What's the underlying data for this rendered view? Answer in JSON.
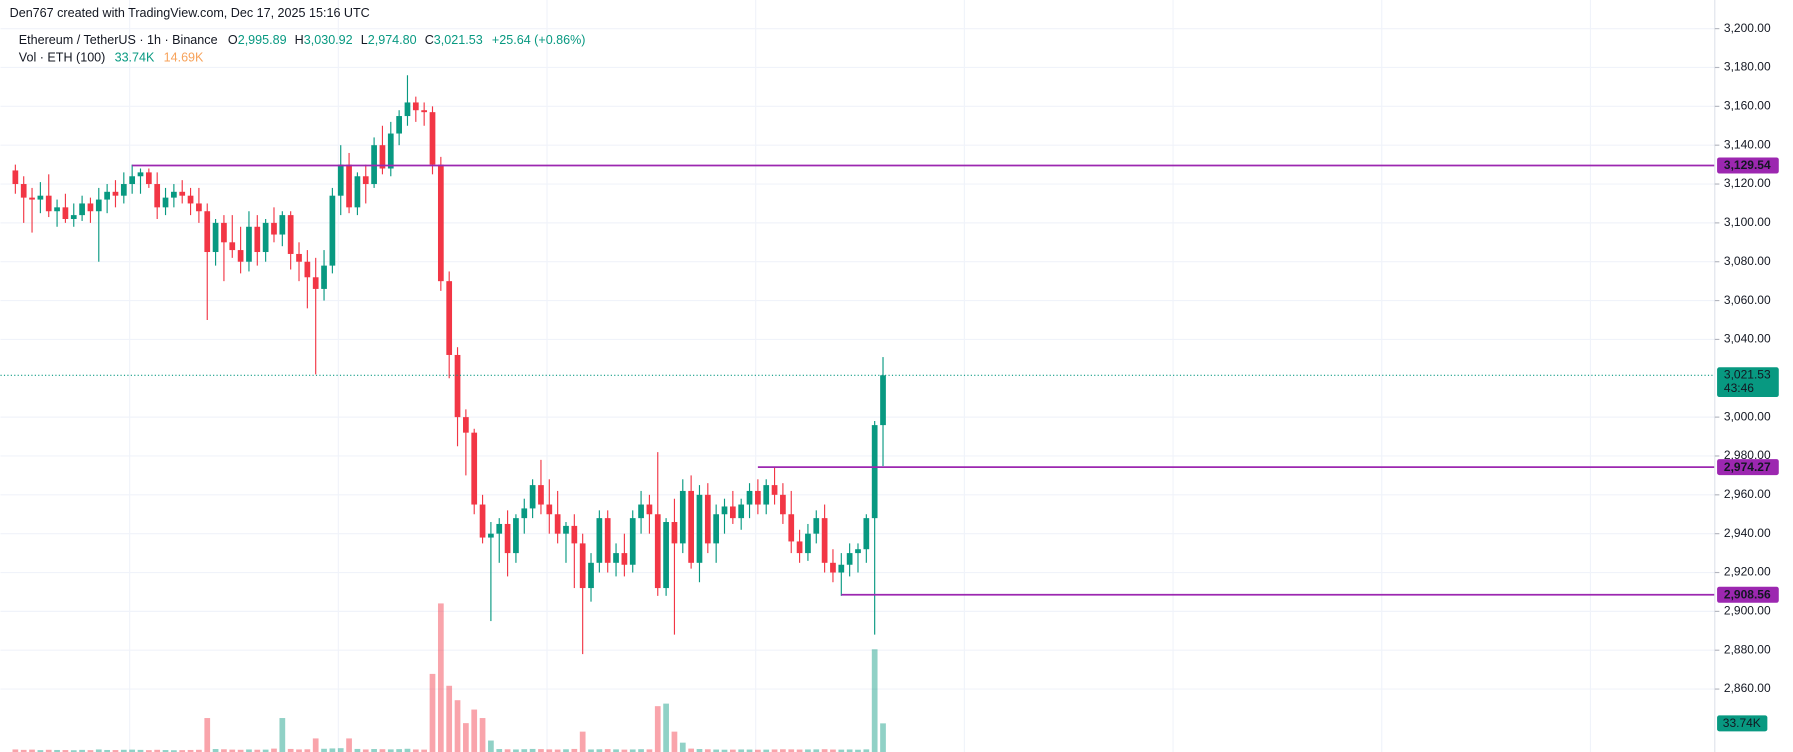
{
  "header": {
    "credit": "Den767 created with TradingView.com, Dec 17, 2025 15:16 UTC"
  },
  "chart_data": {
    "type": "candlestick",
    "title": "Ethereum / TetherUS · 1h · Binance",
    "ohlc_legend": [
      {
        "key": "O",
        "value": 2995.89,
        "label": "2,995.89"
      },
      {
        "key": "H",
        "value": 3030.92,
        "label": "3,030.92"
      },
      {
        "key": "L",
        "value": 2974.8,
        "label": "2,974.80"
      },
      {
        "key": "C",
        "value": 3021.53,
        "label": "3,021.53"
      }
    ],
    "change_label": "+25.64 (+0.86%)",
    "volume_legend": {
      "title": "Vol · ETH (100)",
      "value": {
        "value": 33740,
        "label": "33.74K"
      },
      "ma": {
        "value": 14690,
        "label": "14.69K"
      }
    },
    "up_color": "#089981",
    "down_color": "#f23645",
    "level_color": "#9c27b0",
    "ylim": [
      2827.6,
      3201.8
    ],
    "yticks": [
      {
        "value": 2860,
        "label": "2,860.00"
      },
      {
        "value": 2880,
        "label": "2,880.00"
      },
      {
        "value": 2900,
        "label": "2,900.00"
      },
      {
        "value": 2920,
        "label": "2,920.00"
      },
      {
        "value": 2940,
        "label": "2,940.00"
      },
      {
        "value": 2960,
        "label": "2,960.00"
      },
      {
        "value": 2980,
        "label": "2,980.00"
      },
      {
        "value": 3000,
        "label": "3,000.00"
      },
      {
        "value": 3040,
        "label": "3,040.00"
      },
      {
        "value": 3060,
        "label": "3,060.00"
      },
      {
        "value": 3080,
        "label": "3,080.00"
      },
      {
        "value": 3100,
        "label": "3,100.00"
      },
      {
        "value": 3120,
        "label": "3,120.00"
      },
      {
        "value": 3140,
        "label": "3,140.00"
      },
      {
        "value": 3160,
        "label": "3,160.00"
      },
      {
        "value": 3180,
        "label": "3,180.00"
      },
      {
        "value": 3200,
        "label": "3,200.00"
      }
    ],
    "levels": [
      {
        "value": 3129.54,
        "label": "3,129.54"
      },
      {
        "value": 2974.27,
        "label": "2,974.27"
      },
      {
        "value": 2908.56,
        "label": "2,908.56"
      }
    ],
    "current_price": {
      "value": 3021.53,
      "label": "3,021.53",
      "countdown": "43:46"
    },
    "ohlc": [
      [
        3127,
        3130,
        3115,
        3120
      ],
      [
        3120,
        3124,
        3100,
        3113
      ],
      [
        3113,
        3118,
        3095,
        3112
      ],
      [
        3112,
        3121,
        3105,
        3114
      ],
      [
        3114,
        3125,
        3103,
        3106
      ],
      [
        3106,
        3112,
        3098,
        3108
      ],
      [
        3108,
        3115,
        3100,
        3102
      ],
      [
        3102,
        3110,
        3098,
        3104
      ],
      [
        3104,
        3114,
        3101,
        3110
      ],
      [
        3110,
        3113,
        3100,
        3106
      ],
      [
        3106,
        3118,
        3080,
        3112
      ],
      [
        3112,
        3120,
        3105,
        3116
      ],
      [
        3116,
        3122,
        3108,
        3114
      ],
      [
        3114,
        3126,
        3110,
        3120
      ],
      [
        3120,
        3130,
        3115,
        3124
      ],
      [
        3124,
        3128,
        3115,
        3126
      ],
      [
        3126,
        3128,
        3118,
        3120
      ],
      [
        3120,
        3126,
        3102,
        3108
      ],
      [
        3108,
        3118,
        3104,
        3113
      ],
      [
        3113,
        3120,
        3108,
        3116
      ],
      [
        3116,
        3122,
        3110,
        3114
      ],
      [
        3114,
        3118,
        3104,
        3110
      ],
      [
        3110,
        3118,
        3100,
        3106
      ],
      [
        3106,
        3110,
        3050,
        3085
      ],
      [
        3085,
        3102,
        3078,
        3100
      ],
      [
        3100,
        3104,
        3070,
        3090
      ],
      [
        3090,
        3104,
        3082,
        3086
      ],
      [
        3086,
        3098,
        3074,
        3080
      ],
      [
        3080,
        3106,
        3075,
        3098
      ],
      [
        3098,
        3104,
        3078,
        3085
      ],
      [
        3085,
        3102,
        3080,
        3100
      ],
      [
        3100,
        3108,
        3090,
        3094
      ],
      [
        3094,
        3106,
        3088,
        3104
      ],
      [
        3104,
        3106,
        3076,
        3084
      ],
      [
        3084,
        3090,
        3070,
        3080
      ],
      [
        3080,
        3086,
        3056,
        3072
      ],
      [
        3072,
        3082,
        3022,
        3066
      ],
      [
        3066,
        3086,
        3060,
        3078
      ],
      [
        3078,
        3118,
        3074,
        3114
      ],
      [
        3114,
        3140,
        3104,
        3130
      ],
      [
        3130,
        3136,
        3105,
        3108
      ],
      [
        3108,
        3126,
        3104,
        3124
      ],
      [
        3124,
        3130,
        3110,
        3120
      ],
      [
        3120,
        3144,
        3118,
        3140
      ],
      [
        3140,
        3150,
        3125,
        3128
      ],
      [
        3128,
        3152,
        3124,
        3146
      ],
      [
        3146,
        3158,
        3140,
        3155
      ],
      [
        3155,
        3176,
        3150,
        3162
      ],
      [
        3162,
        3165,
        3152,
        3158
      ],
      [
        3158,
        3162,
        3150,
        3157
      ],
      [
        3157,
        3160,
        3125,
        3130
      ],
      [
        3130,
        3134,
        3065,
        3070
      ],
      [
        3070,
        3075,
        3020,
        3032
      ],
      [
        3032,
        3036,
        2985,
        3000
      ],
      [
        3000,
        3004,
        2970,
        2992
      ],
      [
        2992,
        2994,
        2950,
        2955
      ],
      [
        2955,
        2960,
        2935,
        2938
      ],
      [
        2938,
        2946,
        2895,
        2940
      ],
      [
        2940,
        2948,
        2925,
        2945
      ],
      [
        2945,
        2952,
        2918,
        2930
      ],
      [
        2930,
        2950,
        2925,
        2948
      ],
      [
        2948,
        2958,
        2940,
        2953
      ],
      [
        2953,
        2968,
        2948,
        2965
      ],
      [
        2965,
        2978,
        2950,
        2955
      ],
      [
        2955,
        2968,
        2940,
        2950
      ],
      [
        2950,
        2962,
        2935,
        2940
      ],
      [
        2940,
        2946,
        2925,
        2944
      ],
      [
        2944,
        2950,
        2912,
        2935
      ],
      [
        2935,
        2940,
        2878,
        2912
      ],
      [
        2912,
        2930,
        2905,
        2925
      ],
      [
        2925,
        2952,
        2920,
        2948
      ],
      [
        2948,
        2952,
        2920,
        2925
      ],
      [
        2925,
        2935,
        2918,
        2930
      ],
      [
        2930,
        2940,
        2918,
        2924
      ],
      [
        2924,
        2952,
        2920,
        2948
      ],
      [
        2948,
        2962,
        2940,
        2955
      ],
      [
        2955,
        2960,
        2940,
        2950
      ],
      [
        2950,
        2982,
        2908,
        2912
      ],
      [
        2912,
        2948,
        2908,
        2946
      ],
      [
        2946,
        2958,
        2888,
        2935
      ],
      [
        2935,
        2968,
        2930,
        2962
      ],
      [
        2962,
        2970,
        2922,
        2925
      ],
      [
        2925,
        2965,
        2915,
        2960
      ],
      [
        2960,
        2966,
        2930,
        2935
      ],
      [
        2935,
        2955,
        2925,
        2950
      ],
      [
        2950,
        2958,
        2940,
        2954
      ],
      [
        2954,
        2962,
        2945,
        2948
      ],
      [
        2948,
        2958,
        2942,
        2955
      ],
      [
        2955,
        2966,
        2948,
        2962
      ],
      [
        2962,
        2968,
        2950,
        2955
      ],
      [
        2955,
        2968,
        2950,
        2965
      ],
      [
        2965,
        2974,
        2955,
        2960
      ],
      [
        2960,
        2966,
        2945,
        2950
      ],
      [
        2950,
        2962,
        2930,
        2936
      ],
      [
        2936,
        2942,
        2925,
        2930
      ],
      [
        2930,
        2945,
        2926,
        2940
      ],
      [
        2940,
        2952,
        2935,
        2948
      ],
      [
        2948,
        2955,
        2920,
        2925
      ],
      [
        2925,
        2932,
        2915,
        2920
      ],
      [
        2920,
        2930,
        2908,
        2924
      ],
      [
        2924,
        2935,
        2918,
        2930
      ],
      [
        2930,
        2935,
        2920,
        2932
      ],
      [
        2932,
        2950,
        2925,
        2948
      ],
      [
        2948,
        2998,
        2888,
        2995.89
      ],
      [
        2995.89,
        3030.92,
        2974.8,
        3021.53
      ]
    ],
    "volume": [
      3000,
      2500,
      2800,
      2200,
      2600,
      2400,
      2300,
      2100,
      2500,
      2200,
      3000,
      2400,
      2300,
      2600,
      2800,
      2500,
      2200,
      2600,
      2300,
      2100,
      2200,
      2400,
      2600,
      40000,
      3500,
      3200,
      2800,
      2600,
      3000,
      2700,
      2800,
      4000,
      40000,
      3600,
      3000,
      3200,
      16000,
      3800,
      4200,
      4500,
      16000,
      3600,
      3000,
      3500,
      3300,
      3100,
      3400,
      3800,
      3000,
      2800,
      92000,
      175000,
      78000,
      61000,
      34000,
      50000,
      40000,
      13500,
      3500,
      3200,
      3000,
      3300,
      3600,
      3400,
      3100,
      2900,
      3200,
      3600,
      24000,
      3000,
      3200,
      3400,
      3100,
      2800,
      3000,
      3300,
      3100,
      54000,
      57000,
      24000,
      11000,
      4000,
      3500,
      3200,
      2900,
      2700,
      2800,
      3000,
      2900,
      2700,
      2800,
      3000,
      3200,
      3100,
      2900,
      3000,
      3100,
      3300,
      2900,
      2800,
      3000,
      2700,
      3100,
      121000,
      33740
    ]
  }
}
